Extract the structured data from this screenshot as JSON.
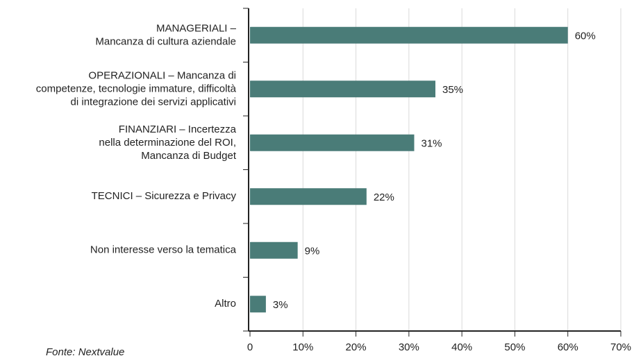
{
  "chart_data": {
    "type": "bar",
    "orientation": "horizontal",
    "categories": [
      "MANAGERIALI –\nMancanza di cultura aziendale",
      "OPERAZIONALI – Mancanza di\ncompetenze, tecnologie immature, difficoltà\ndi integrazione dei servizi applicativi",
      "FINANZIARI – Incertezza\nnella determinazione del ROI,\nMancanza di Budget",
      "TECNICI – Sicurezza e Privacy",
      "Non interesse verso la tematica",
      "Altro"
    ],
    "values": [
      60,
      35,
      31,
      22,
      9,
      3
    ],
    "value_labels": [
      "60%",
      "35%",
      "31%",
      "22%",
      "9%",
      "3%"
    ],
    "color": "#4a7c78",
    "xlim": [
      0,
      70
    ],
    "xticks": [
      0,
      {
        "value": 10,
        "label": "10%"
      },
      {
        "value": 20,
        "label": "20%"
      },
      {
        "value": 30,
        "label": "30%"
      },
      {
        "value": 40,
        "label": "40%"
      },
      {
        "value": 50,
        "label": "50%"
      },
      {
        "value": 60,
        "label": "60%"
      },
      {
        "value": 70,
        "label": "70%"
      }
    ],
    "grid": true,
    "source": "Fonte: Nextvalue"
  }
}
